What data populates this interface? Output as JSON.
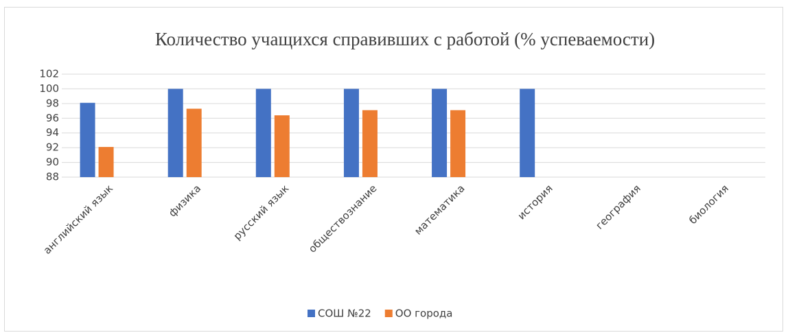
{
  "chart_data": {
    "type": "bar",
    "title": "Количество учащихся справивших с работой (% успеваемости)",
    "categories": [
      "английский язык",
      "физика",
      "русский язык",
      "обществознание",
      "математика",
      "история",
      "география",
      "биология"
    ],
    "series": [
      {
        "name": "СОШ №22",
        "color": "#4472c4",
        "values": [
          98.1,
          100,
          100,
          100,
          100,
          100,
          null,
          null
        ]
      },
      {
        "name": "ОО города",
        "color": "#ed7d31",
        "values": [
          92.1,
          97.3,
          96.4,
          97.1,
          97.1,
          null,
          null,
          null
        ]
      }
    ],
    "ylim": [
      88,
      102
    ],
    "yticks": [
      88,
      90,
      92,
      94,
      96,
      98,
      100,
      102
    ],
    "grid": true,
    "legend": "bottom"
  }
}
